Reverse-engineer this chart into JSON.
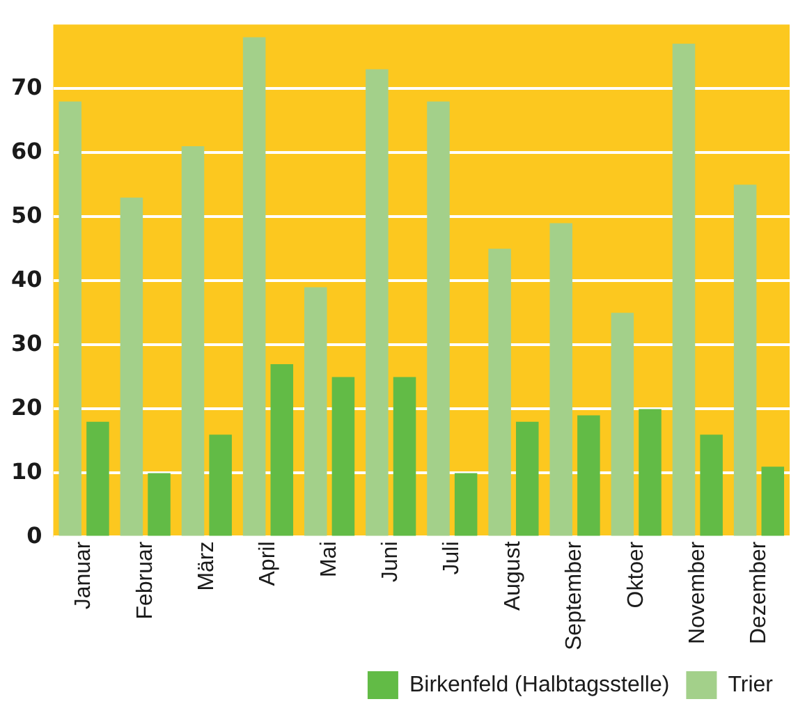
{
  "chart_data": {
    "type": "bar",
    "categories": [
      "Januar",
      "Februar",
      "März",
      "April",
      "Mai",
      "Juni",
      "Juli",
      "August",
      "September",
      "Oktoer",
      "November",
      "Dezember"
    ],
    "series": [
      {
        "name": "Trier",
        "color": "#a3d08a",
        "values": [
          68,
          53,
          61,
          78,
          39,
          73,
          68,
          45,
          49,
          35,
          77,
          55
        ]
      },
      {
        "name": "Birkenfeld (Halbtagsstelle)",
        "color": "#62bb46",
        "values": [
          18,
          10,
          16,
          27,
          25,
          25,
          10,
          18,
          19,
          20,
          16,
          11
        ]
      }
    ],
    "ylim": [
      0,
      80
    ],
    "yticks": [
      0,
      10,
      20,
      30,
      40,
      50,
      60,
      70
    ],
    "grid": "y",
    "legend": "bottom right"
  }
}
